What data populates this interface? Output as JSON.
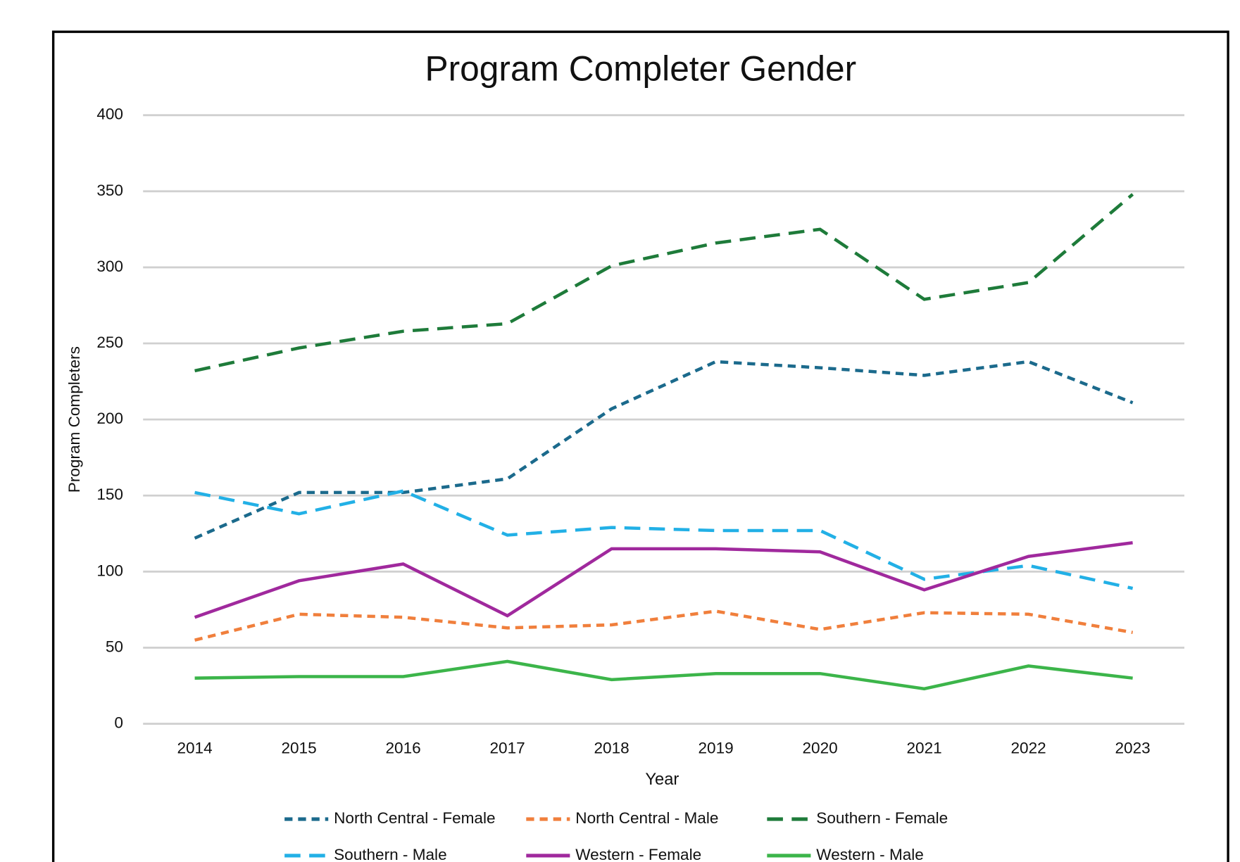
{
  "chart_data": {
    "type": "line",
    "title": "Program Completer Gender",
    "x_label": "Year",
    "y_label": "Program Completers",
    "categories": [
      "2014",
      "2015",
      "2016",
      "2017",
      "2018",
      "2019",
      "2020",
      "2021",
      "2022",
      "2023"
    ],
    "series": [
      {
        "name": "North Central - Female",
        "color": "#1b6a8c",
        "style": "dashed",
        "values": [
          122,
          152,
          152,
          161,
          207,
          238,
          234,
          229,
          238,
          211
        ]
      },
      {
        "name": "North Central - Male",
        "color": "#f07f3c",
        "style": "dashed",
        "values": [
          55,
          72,
          70,
          63,
          65,
          74,
          62,
          73,
          72,
          60
        ]
      },
      {
        "name": "Southern - Female",
        "color": "#1e7b3a",
        "style": "long-dashed",
        "values": [
          232,
          247,
          258,
          263,
          301,
          316,
          325,
          279,
          290,
          348
        ]
      },
      {
        "name": "Southern - Male",
        "color": "#22b0e6",
        "style": "long-dashed",
        "values": [
          152,
          138,
          153,
          124,
          129,
          127,
          127,
          95,
          104,
          89
        ]
      },
      {
        "name": "Western - Female",
        "color": "#a0299d",
        "style": "solid",
        "values": [
          70,
          94,
          105,
          71,
          115,
          115,
          113,
          88,
          110,
          119
        ]
      },
      {
        "name": "Western - Male",
        "color": "#3cb54a",
        "style": "solid",
        "values": [
          30,
          31,
          31,
          41,
          29,
          33,
          33,
          23,
          38,
          30
        ]
      }
    ],
    "ylim": [
      0,
      400
    ],
    "yticks": [
      0,
      50,
      100,
      150,
      200,
      250,
      300,
      350,
      400
    ],
    "grid": true,
    "legend": "bottom"
  }
}
